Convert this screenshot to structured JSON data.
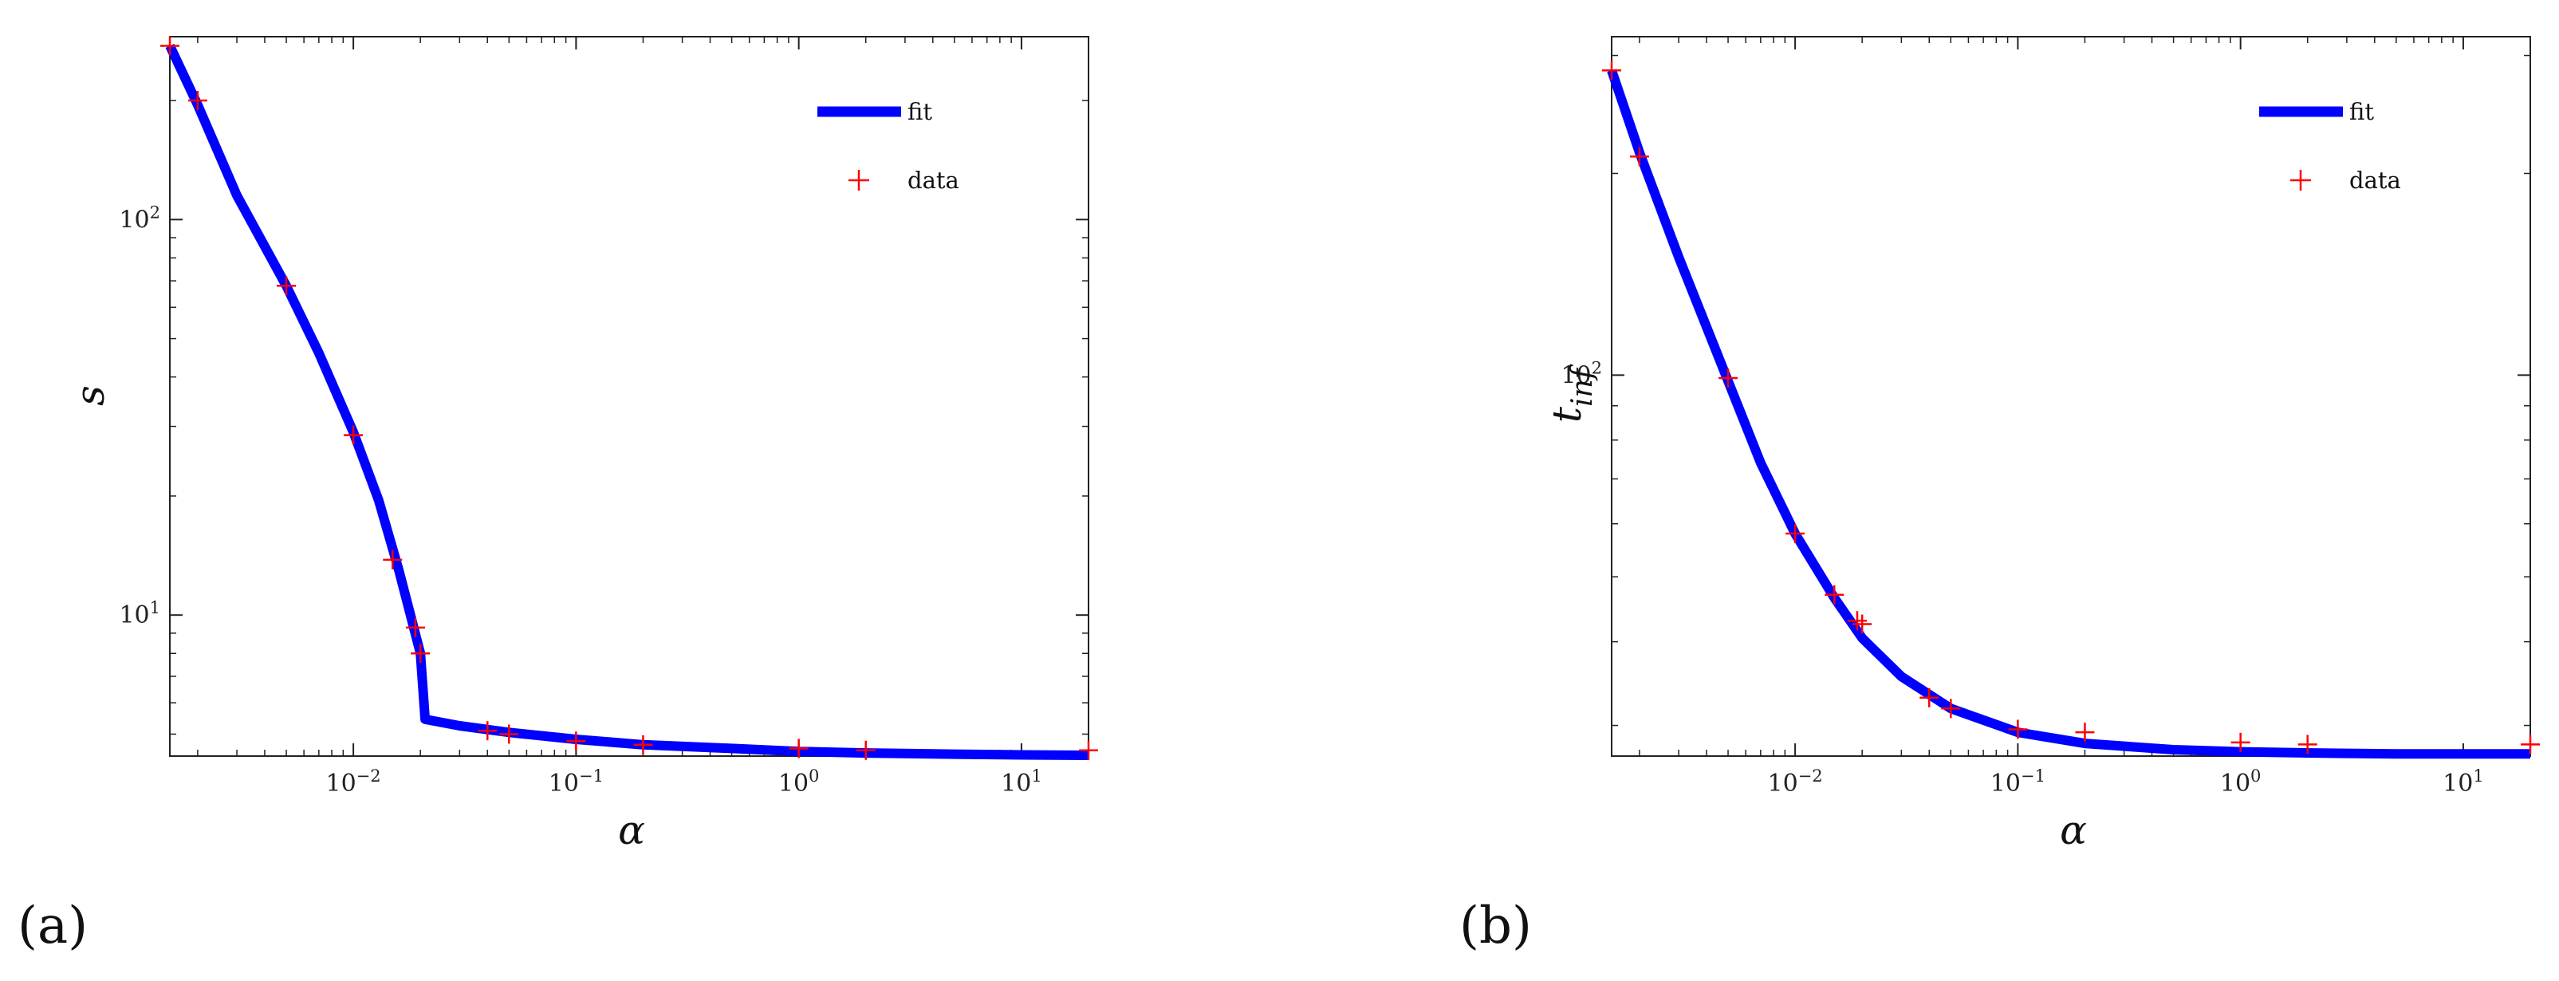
{
  "figure": {
    "panel_labels": [
      "(a)",
      "(b)"
    ]
  },
  "chart_data": [
    {
      "type": "line",
      "panel": "(a)",
      "xlabel": "α",
      "ylabel": "s",
      "xscale": "log",
      "yscale": "log",
      "xlim": [
        0.0015,
        20
      ],
      "ylim": [
        4.4,
        290
      ],
      "x_ticks": [
        {
          "value": 0.01,
          "base": "10",
          "exp": "−2"
        },
        {
          "value": 0.1,
          "base": "10",
          "exp": "−1"
        },
        {
          "value": 1,
          "base": "10",
          "exp": "0"
        },
        {
          "value": 10,
          "base": "10",
          "exp": "1"
        }
      ],
      "y_ticks": [
        {
          "value": 10,
          "base": "10",
          "exp": "1"
        },
        {
          "value": 100,
          "base": "10",
          "exp": "2"
        }
      ],
      "legend": {
        "position": "top-right",
        "entries": [
          "fit",
          "data"
        ]
      },
      "series": [
        {
          "name": "fit",
          "kind": "line",
          "color": "#0000ff",
          "x": [
            0.0015,
            0.002,
            0.003,
            0.005,
            0.007,
            0.01,
            0.013,
            0.016,
            0.02,
            0.021,
            0.03,
            0.05,
            0.1,
            0.2,
            0.5,
            1,
            2,
            5,
            10,
            20
          ],
          "y": [
            275,
            195,
            115,
            68,
            46,
            29,
            19.5,
            13,
            8,
            5.45,
            5.25,
            5.05,
            4.85,
            4.7,
            4.6,
            4.52,
            4.48,
            4.45,
            4.43,
            4.42
          ]
        },
        {
          "name": "data",
          "kind": "marker",
          "marker": "+",
          "color": "#ff0000",
          "x": [
            0.0015,
            0.002,
            0.005,
            0.01,
            0.015,
            0.019,
            0.02,
            0.04,
            0.05,
            0.1,
            0.2,
            1,
            2,
            20
          ],
          "y": [
            275,
            200,
            68,
            28.5,
            13.8,
            9.3,
            8,
            5.1,
            5,
            4.8,
            4.7,
            4.6,
            4.55,
            4.55
          ]
        }
      ]
    },
    {
      "type": "line",
      "panel": "(b)",
      "xlabel": "α",
      "ylabel": "t_inf",
      "xscale": "log",
      "yscale": "log",
      "xlim": [
        0.0015,
        20
      ],
      "ylim": [
        27,
        320
      ],
      "x_ticks": [
        {
          "value": 0.01,
          "base": "10",
          "exp": "−2"
        },
        {
          "value": 0.1,
          "base": "10",
          "exp": "−1"
        },
        {
          "value": 1,
          "base": "10",
          "exp": "0"
        },
        {
          "value": 10,
          "base": "10",
          "exp": "1"
        }
      ],
      "y_ticks": [
        {
          "value": 100,
          "base": "10",
          "exp": "2"
        }
      ],
      "legend": {
        "position": "top-right",
        "entries": [
          "fit",
          "data"
        ]
      },
      "series": [
        {
          "name": "fit",
          "kind": "line",
          "color": "#0000ff",
          "x": [
            0.0015,
            0.002,
            0.003,
            0.005,
            0.007,
            0.01,
            0.015,
            0.02,
            0.03,
            0.05,
            0.1,
            0.2,
            0.5,
            1,
            2,
            5,
            10,
            20
          ],
          "y": [
            285,
            215,
            150,
            98,
            74,
            58,
            46.5,
            40.5,
            35.5,
            31.8,
            29.3,
            28.2,
            27.6,
            27.4,
            27.3,
            27.2,
            27.2,
            27.2
          ]
        },
        {
          "name": "data",
          "kind": "marker",
          "marker": "+",
          "color": "#ff0000",
          "x": [
            0.0015,
            0.002,
            0.005,
            0.01,
            0.015,
            0.019,
            0.02,
            0.04,
            0.05,
            0.1,
            0.2,
            1,
            2,
            20
          ],
          "y": [
            285,
            212,
            99,
            58,
            47,
            43,
            42.5,
            33,
            31.8,
            29.6,
            29.3,
            28.3,
            28.1,
            28.1
          ]
        }
      ]
    }
  ]
}
